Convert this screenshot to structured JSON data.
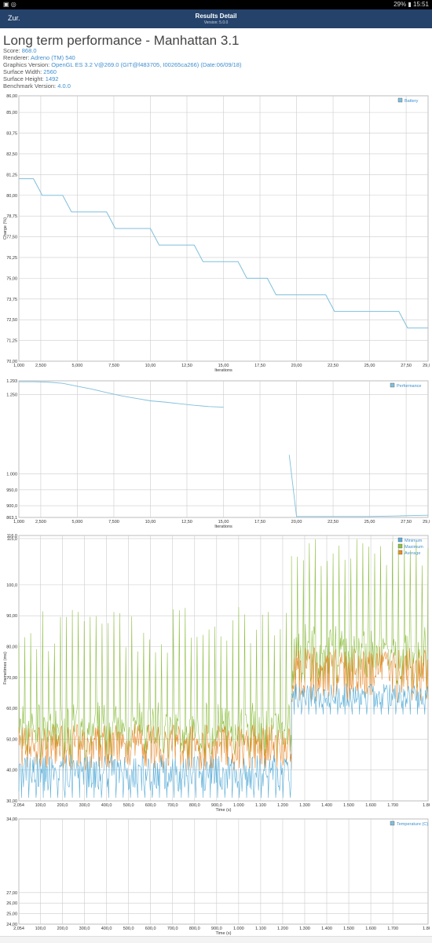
{
  "status_bar": {
    "left_icons": "▣ ◎",
    "right_text": "29% ▮ 15:51"
  },
  "app_bar": {
    "back_label": "Zur.",
    "title": "Results Detail",
    "version": "Version: 5.0.0"
  },
  "heading": "Long term performance - Manhattan 3.1",
  "info": [
    {
      "label": "Score: ",
      "value": "868.0"
    },
    {
      "label": "Renderer: ",
      "value": "Adreno (TM) 540"
    },
    {
      "label": "Graphics Version: ",
      "value": "OpenGL ES 3.2 V@269.0 (GIT@f483705, I00265ca266) (Date:06/09/18)"
    },
    {
      "label": "Surface Width: ",
      "value": "2560"
    },
    {
      "label": "Surface Height: ",
      "value": "1492"
    },
    {
      "label": "Benchmark Version: ",
      "value": "4.0.0"
    }
  ],
  "colors": {
    "line": "#7fbfdc",
    "grid": "#cccccc",
    "minimum": "#5aaed8",
    "maximum": "#8fbf44",
    "average": "#e8892a",
    "value_text": "#3f8fcf"
  },
  "chart_data": [
    {
      "type": "line",
      "legend": [
        "Battery"
      ],
      "ylabel": "Charge (%)",
      "xlabel": "Iterations",
      "ylim": [
        70,
        86
      ],
      "xlim": [
        1,
        29
      ],
      "yticks": [
        "86,00",
        "85,00",
        "83,75",
        "82,50",
        "81,25",
        "80,00",
        "78,75",
        "77,50",
        "76,25",
        "75,00",
        "73,75",
        "72,50",
        "71,25",
        "70,00"
      ],
      "ytick_values": [
        86,
        85,
        83.75,
        82.5,
        81.25,
        80,
        78.75,
        77.5,
        76.25,
        75,
        73.75,
        72.5,
        71.25,
        70
      ],
      "xticks": [
        "1,000",
        "2,500",
        "5,000",
        "7,500",
        "10,00",
        "12,50",
        "15,00",
        "17,50",
        "20,00",
        "22,50",
        "25,00",
        "27,50",
        "29,00"
      ],
      "xtick_values": [
        1,
        2.5,
        5,
        7.5,
        10,
        12.5,
        15,
        17.5,
        20,
        22.5,
        25,
        27.5,
        29
      ],
      "series": [
        {
          "name": "Battery",
          "x": [
            1,
            2,
            3,
            4,
            5,
            6,
            7,
            8,
            9,
            10,
            11,
            12,
            13,
            14,
            15,
            16,
            17,
            18,
            19,
            20,
            21,
            22,
            23,
            24,
            25,
            26,
            27,
            28,
            29
          ],
          "values": [
            81,
            81,
            80,
            80,
            79,
            79,
            79,
            78,
            78,
            78,
            77,
            77,
            77,
            76,
            76,
            76,
            75,
            75,
            74,
            74,
            74,
            74,
            73,
            73,
            73,
            73,
            73,
            72,
            72
          ]
        }
      ]
    },
    {
      "type": "line",
      "legend": [
        "Performance"
      ],
      "xlabel": "Iterations",
      "ylim": [
        863.1,
        1293
      ],
      "xlim": [
        1,
        29
      ],
      "yticks": [
        "1.293",
        "1.250",
        "1.000",
        "950,0",
        "900,0",
        "863,1"
      ],
      "ytick_values": [
        1293,
        1250,
        1000,
        950,
        900,
        863.1
      ],
      "xticks": [
        "1,000",
        "2,500",
        "5,000",
        "7,500",
        "10,00",
        "12,50",
        "15,00",
        "17,50",
        "20,00",
        "22,50",
        "25,00",
        "27,50",
        "29,00"
      ],
      "xtick_values": [
        1,
        2.5,
        5,
        7.5,
        10,
        12.5,
        15,
        17.5,
        20,
        22.5,
        25,
        27.5,
        29
      ],
      "series": [
        {
          "name": "Performance",
          "x": [
            1,
            2,
            3,
            4,
            5,
            6,
            7,
            8,
            9,
            10,
            11,
            12,
            13,
            14,
            15
          ],
          "values": [
            1290,
            1290,
            1289,
            1285,
            1276,
            1267,
            1256,
            1246,
            1238,
            1230,
            1226,
            1221,
            1216,
            1212,
            1210
          ]
        },
        {
          "name": "Performance",
          "x": [
            19.5,
            20,
            21,
            22,
            23,
            24,
            25,
            26,
            27,
            28,
            29
          ],
          "values": [
            1060,
            866,
            866,
            866,
            866,
            866,
            866,
            867,
            868,
            869,
            870
          ]
        }
      ]
    },
    {
      "type": "line",
      "legend": [
        "Minimum",
        "Maximum",
        "Average"
      ],
      "ylabel": "Frametimes (ms)",
      "xlabel": "Time (s)",
      "ylim": [
        30,
        116
      ],
      "xlim": [
        2.054,
        1860
      ],
      "yticks": [
        "116,0",
        "115,0",
        "100,0",
        "90,00",
        "80,00",
        "70,00",
        "60,00",
        "50,00",
        "40,00",
        "30,00"
      ],
      "ytick_values": [
        116,
        115,
        100,
        90,
        80,
        70,
        60,
        50,
        40,
        30
      ],
      "xticks": [
        "2,054",
        "100,0",
        "200,0",
        "300,0",
        "400,0",
        "500,0",
        "600,0",
        "700,0",
        "800,0",
        "900,0",
        "1.000",
        "1.100",
        "1.200",
        "1.300",
        "1.400",
        "1.500",
        "1.600",
        "1.700",
        "1.860"
      ],
      "xtick_values": [
        2.054,
        100,
        200,
        300,
        400,
        500,
        600,
        700,
        800,
        900,
        1000,
        1100,
        1200,
        1300,
        1400,
        1500,
        1600,
        1700,
        1860
      ],
      "segments": [
        {
          "x_start": 2.054,
          "x_end": 1240,
          "minimum_range": [
            33,
            45
          ],
          "maximum_peaks": [
            78,
            93
          ],
          "average_range": [
            40,
            55
          ]
        },
        {
          "x_start": 1240,
          "x_end": 1860,
          "minimum_range": [
            60,
            68
          ],
          "maximum_peaks": [
            105,
            115
          ],
          "average_range": [
            62,
            80
          ]
        }
      ]
    },
    {
      "type": "line",
      "legend": [
        "Temperature (C)"
      ],
      "xlabel": "Time (s)",
      "ylim": [
        24,
        34
      ],
      "xlim": [
        2.054,
        1860
      ],
      "yticks": [
        "34,00",
        "27,00",
        "26,00",
        "25,00",
        "24,00"
      ],
      "ytick_values": [
        34,
        27,
        26,
        25,
        24
      ],
      "xticks": [
        "2,054",
        "100,0",
        "200,0",
        "300,0",
        "400,0",
        "500,0",
        "600,0",
        "700,0",
        "800,0",
        "900,0",
        "1.000",
        "1.100",
        "1.200",
        "1.300",
        "1.400",
        "1.500",
        "1.600",
        "1.700",
        "1.860"
      ],
      "xtick_values": [
        2.054,
        100,
        200,
        300,
        400,
        500,
        600,
        700,
        800,
        900,
        1000,
        1100,
        1200,
        1300,
        1400,
        1500,
        1600,
        1700,
        1860
      ],
      "series": []
    }
  ]
}
